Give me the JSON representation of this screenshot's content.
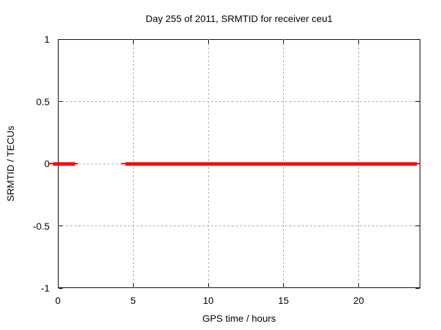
{
  "window": {
    "background_color": "#ffffff",
    "text_color": "#000000"
  },
  "chart_data": {
    "type": "line",
    "title": "Day 255 of 2011, SRMTID for receiver ceu1",
    "xlabel": "GPS time / hours",
    "ylabel": "SRMTID / TECUs",
    "xlim": [
      0,
      24.1
    ],
    "ylim": [
      -1,
      1
    ],
    "xticks": [
      0,
      5,
      10,
      15,
      20
    ],
    "yticks": [
      1,
      0.5,
      0,
      -0.5,
      -1
    ],
    "xtick_labels": [
      "0",
      "5",
      "10",
      "15",
      "20"
    ],
    "ytick_labels": [
      "1",
      "0.5",
      "0",
      "-0.5",
      "-1"
    ],
    "grid": true,
    "grid_color": "#a8a8a8",
    "border_color": "#000000",
    "legend": "none",
    "series": [
      {
        "name": "SRMTID",
        "color": "#ff0000",
        "y_value": 0,
        "segments": [
          {
            "x_start": -0.6,
            "x_end": 1.33
          },
          {
            "x_start": 4.21,
            "x_end": 24.05
          }
        ]
      }
    ]
  }
}
